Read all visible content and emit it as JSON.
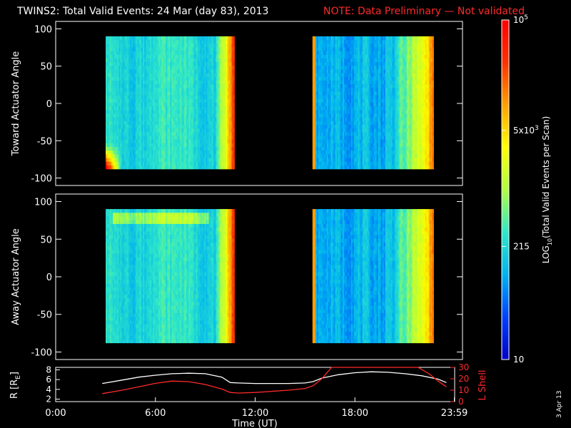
{
  "title": {
    "main": "TWINS2: Total Valid Events: 24 Mar (day  83), 2013",
    "note": "NOTE: Data Preliminary — Not validated",
    "note_color": "#ff2a2a"
  },
  "footer": {
    "date_stamp": "3 Apr 13"
  },
  "chart_data": [
    {
      "type": "heatmap",
      "id": "toward",
      "ylabel": "Toward Actuator Angle",
      "ylim": [
        -110,
        110
      ],
      "yticks": [
        100,
        50,
        0,
        -50,
        -100
      ],
      "xlim_hours": [
        0,
        24
      ],
      "data_extent": {
        "angle": [
          -88,
          90
        ]
      },
      "intervals_hours": [
        [
          2.95,
          10.55
        ],
        [
          15.15,
          22.3
        ]
      ],
      "features": [
        "high counts at lowest angles near 3:00 UT",
        "high counts toward 22:00 UT"
      ]
    },
    {
      "type": "heatmap",
      "id": "away",
      "ylabel": "Away Actuator Angle",
      "ylim": [
        -110,
        110
      ],
      "yticks": [
        100,
        50,
        0,
        -50,
        -100
      ],
      "xlim_hours": [
        0,
        24
      ],
      "data_extent": {
        "angle": [
          -88,
          90
        ]
      },
      "intervals_hours": [
        [
          2.95,
          10.55
        ],
        [
          15.15,
          22.3
        ]
      ],
      "features": [
        "elevated band near +80 deg from 3:00 to 9:00 UT",
        "high counts toward 22:00 UT"
      ]
    },
    {
      "type": "line",
      "id": "orbit",
      "ylabel_left": "R [R",
      "ylabel_left_sub": "E",
      "ylabel_left_end": "]",
      "ylabel_right": "L Shell",
      "ylim_left": [
        1.5,
        8.5
      ],
      "yticks_left": [
        2,
        4,
        6,
        8
      ],
      "ylim_right": [
        0,
        30
      ],
      "yticks_right": [
        0,
        10,
        20,
        30
      ],
      "xlabel": "Time (UT)",
      "xticks": [
        "0:00",
        "6:00",
        "12:00",
        "18:00",
        "23:59"
      ],
      "xtick_hours": [
        0,
        6,
        12,
        18,
        23.98
      ],
      "series": [
        {
          "axis": "left",
          "color": "#ffffff",
          "x": [
            2.8,
            4,
            5,
            6,
            7,
            8,
            9,
            10,
            10.5,
            11,
            12,
            13,
            14,
            15,
            15.5,
            16,
            17,
            18,
            19,
            20,
            21,
            22,
            23,
            23.5
          ],
          "y": [
            5.2,
            5.9,
            6.5,
            6.9,
            7.2,
            7.3,
            7.2,
            6.5,
            5.4,
            5.3,
            5.2,
            5.2,
            5.2,
            5.3,
            5.6,
            6.3,
            7.0,
            7.4,
            7.6,
            7.5,
            7.2,
            6.8,
            6.1,
            5.4
          ]
        },
        {
          "axis": "right",
          "color": "#ff2a2a",
          "x": [
            2.8,
            4,
            5,
            6,
            7,
            8,
            9,
            10,
            10.5,
            11,
            12,
            13,
            14,
            15,
            15.5,
            16,
            16.6,
            21.8,
            22.5,
            23,
            23.5
          ],
          "y": [
            7,
            10,
            13,
            16,
            18,
            17.5,
            15,
            11,
            8,
            7.5,
            8,
            9,
            10,
            11.5,
            14,
            20,
            30,
            30,
            24,
            18,
            13
          ]
        }
      ]
    },
    {
      "type": "colorbar",
      "id": "colorbar",
      "label_prefix": "LOG",
      "label_sub": "10",
      "label_suffix": "(Total Valid Events per Scan)",
      "scale": "log",
      "range": [
        10,
        100000
      ],
      "ticks": [
        {
          "value": 100000,
          "base": "10",
          "exp": "5",
          "mant": ""
        },
        {
          "value": 5000,
          "base": "10",
          "exp": "3",
          "mant": "5x"
        },
        {
          "value": 215,
          "base": "215",
          "exp": "",
          "mant": ""
        },
        {
          "value": 10,
          "base": "10",
          "exp": "",
          "mant": ""
        }
      ],
      "colors": [
        "#0000c8",
        "#0040ff",
        "#00b4f0",
        "#30e8c8",
        "#b0ff40",
        "#ffff00",
        "#ffa000",
        "#ff3000",
        "#ff0000"
      ]
    }
  ]
}
